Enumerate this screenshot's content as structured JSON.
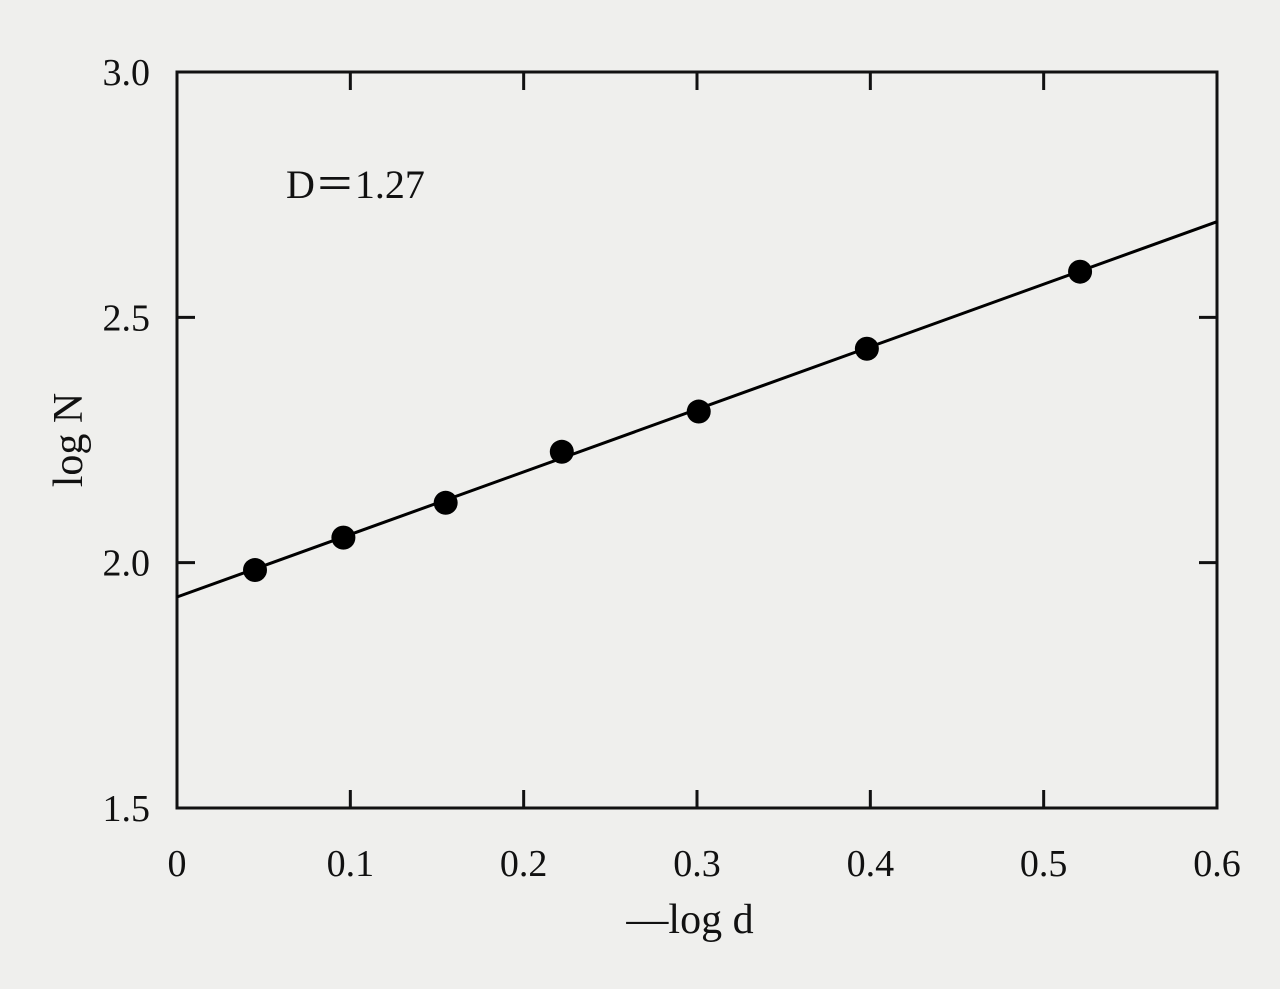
{
  "chart_data": {
    "type": "scatter",
    "xlabel": "—log d",
    "ylabel": "log N",
    "xlim": [
      0,
      0.6
    ],
    "ylim": [
      1.5,
      3.0
    ],
    "x_ticks": [
      {
        "value": 0,
        "label": "0"
      },
      {
        "value": 0.1,
        "label": "0.1"
      },
      {
        "value": 0.2,
        "label": "0.2"
      },
      {
        "value": 0.3,
        "label": "0.3"
      },
      {
        "value": 0.4,
        "label": "0.4"
      },
      {
        "value": 0.5,
        "label": "0.5"
      },
      {
        "value": 0.6,
        "label": "0.6"
      }
    ],
    "y_ticks": [
      {
        "value": 1.5,
        "label": "1.5"
      },
      {
        "value": 2.0,
        "label": "2.0"
      },
      {
        "value": 2.5,
        "label": "2.5"
      },
      {
        "value": 3.0,
        "label": "3.0"
      }
    ],
    "grid": false,
    "points": [
      {
        "x": 0.045,
        "y": 1.985
      },
      {
        "x": 0.096,
        "y": 2.051
      },
      {
        "x": 0.155,
        "y": 2.122
      },
      {
        "x": 0.222,
        "y": 2.226
      },
      {
        "x": 0.301,
        "y": 2.308
      },
      {
        "x": 0.398,
        "y": 2.436
      },
      {
        "x": 0.521,
        "y": 2.593
      }
    ],
    "fit_line": {
      "x": [
        0,
        0.6
      ],
      "y": [
        1.93,
        2.695
      ]
    },
    "annotation": "D＝1.27",
    "colors": {
      "marker": "#000000",
      "line": "#000000",
      "frame": "#111111"
    }
  }
}
